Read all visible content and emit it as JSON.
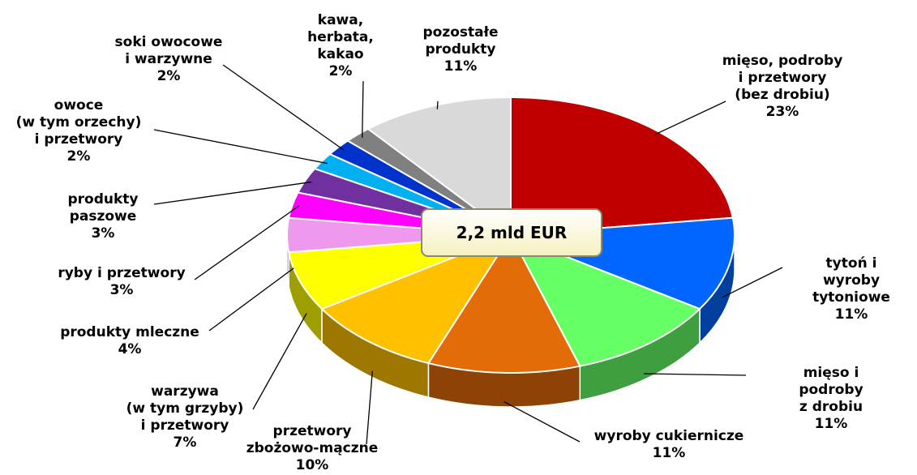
{
  "chart_data": {
    "type": "pie",
    "categories": [
      "mięso, podroby\ni przetwory\n(bez drobiu)",
      "tytoń i wyroby\ntytoniowe",
      "mięso i podroby\nz drobiu",
      "wyroby cukiernicze",
      "przetwory\nzbożowo-mączne",
      "warzywa\n(w tym grzyby)\ni przetwory",
      "produkty mleczne",
      "ryby i przetwory",
      "produkty\npaszowe",
      "owoce\n(w tym orzechy)\ni przetwory",
      "soki owocowe\ni warzywne",
      "kawa,\nherbata,\nkakao",
      "pozostałe\nprodukty"
    ],
    "values": [
      23,
      11,
      11,
      11,
      10,
      7,
      4,
      3,
      3,
      2,
      2,
      2,
      11
    ],
    "value_labels": [
      "23%",
      "11%",
      "11%",
      "11%",
      "10%",
      "7%",
      "4%",
      "3%",
      "3%",
      "2%",
      "2%",
      "2%",
      "11%"
    ],
    "colors": [
      "#c00000",
      "#0066ff",
      "#66ff66",
      "#e36c09",
      "#ffc000",
      "#ffff00",
      "#ee99ee",
      "#ff00ff",
      "#7030a0",
      "#00b0f0",
      "#0033cc",
      "#808080",
      "#d9d9d9"
    ],
    "annotation": "2,2 mld EUR"
  }
}
